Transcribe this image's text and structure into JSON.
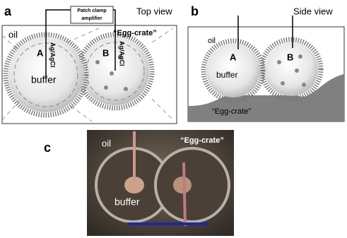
{
  "panel_a": {
    "label": "a",
    "amplifier": "Patch clamp amplifier",
    "view": "Top view",
    "oil": "oil",
    "egg_crate": "“Egg-crate”",
    "droplet_a": "A",
    "electrode_a": "Ag/AgCl",
    "droplet_b": "B",
    "electrode_b": "Ag/AgCl",
    "buffer": "buffer"
  },
  "panel_b": {
    "label": "b",
    "view": "Side view",
    "oil": "oil",
    "droplet_a": "A",
    "droplet_b": "B",
    "buffer": "buffer",
    "egg_crate": "“Egg-crate”"
  },
  "panel_c": {
    "label": "c",
    "oil": "oil",
    "egg_crate": "“Egg-crate”",
    "buffer": "buffer"
  }
}
